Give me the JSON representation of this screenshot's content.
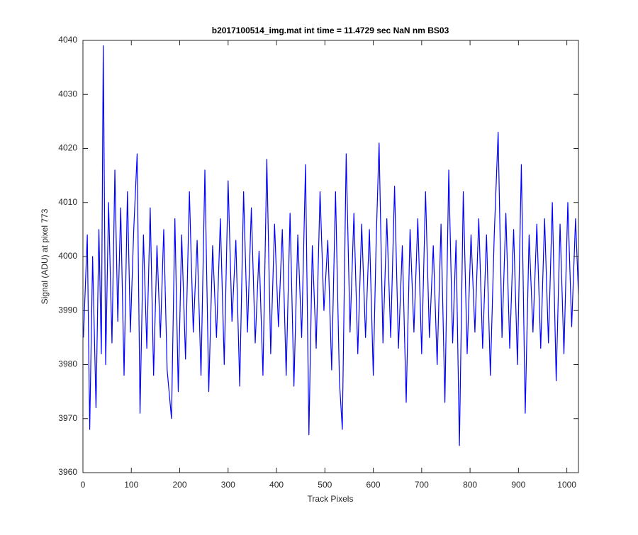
{
  "chart_data": {
    "type": "line",
    "title": "b2017100514_img.mat int time = 11.4729 sec  NaN nm BS03",
    "xlabel": "Track Pixels",
    "ylabel": "Signal (ADU) at pixel 773",
    "xlim": [
      0,
      1024
    ],
    "ylim": [
      3960,
      4040
    ],
    "xticks": [
      0,
      100,
      200,
      300,
      400,
      500,
      600,
      700,
      800,
      900,
      1000
    ],
    "yticks": [
      3960,
      3970,
      3980,
      3990,
      4000,
      4010,
      4020,
      4030,
      4040
    ],
    "grid": false,
    "x": [
      1,
      9,
      14,
      20,
      27,
      33,
      38,
      42,
      47,
      53,
      60,
      66,
      72,
      78,
      85,
      92,
      98,
      105,
      112,
      118,
      125,
      132,
      139,
      146,
      153,
      160,
      167,
      174,
      183,
      190,
      197,
      204,
      212,
      220,
      228,
      236,
      244,
      252,
      260,
      268,
      276,
      284,
      292,
      300,
      308,
      316,
      324,
      332,
      340,
      348,
      356,
      364,
      372,
      380,
      388,
      396,
      404,
      412,
      420,
      428,
      436,
      444,
      452,
      460,
      467,
      474,
      482,
      490,
      498,
      506,
      514,
      522,
      530,
      536,
      544,
      552,
      560,
      568,
      576,
      584,
      592,
      600,
      606,
      612,
      620,
      628,
      636,
      644,
      652,
      660,
      668,
      676,
      684,
      692,
      700,
      708,
      716,
      724,
      732,
      740,
      748,
      756,
      764,
      771,
      778,
      786,
      794,
      802,
      810,
      818,
      826,
      834,
      842,
      850,
      858,
      866,
      874,
      882,
      890,
      898,
      906,
      914,
      922,
      930,
      938,
      946,
      954,
      962,
      970,
      978,
      986,
      994,
      1002,
      1010,
      1018,
      1024
    ],
    "series": [
      {
        "color": "#0000ff",
        "values": [
          3985,
          4004,
          3968,
          4000,
          3972,
          4005,
          3982,
          4039,
          3980,
          4010,
          3984,
          4016,
          3988,
          4009,
          3978,
          4012,
          3986,
          4005,
          4019,
          3971,
          4004,
          3983,
          4009,
          3978,
          4002,
          3985,
          4005,
          3979,
          3970,
          4007,
          3975,
          4004,
          3981,
          4012,
          3986,
          4003,
          3978,
          4016,
          3975,
          4002,
          3985,
          4007,
          3980,
          4014,
          3988,
          4003,
          3976,
          4012,
          3986,
          4009,
          3984,
          4001,
          3978,
          4018,
          3982,
          4006,
          3987,
          4005,
          3978,
          4008,
          3976,
          4004,
          3985,
          4017,
          3967,
          4002,
          3983,
          4012,
          3990,
          4003,
          3979,
          4012,
          3977,
          3968,
          4019,
          3986,
          4008,
          3982,
          4006,
          3985,
          4005,
          3978,
          4003,
          4021,
          3984,
          4007,
          3985,
          4013,
          3983,
          4002,
          3973,
          4005,
          3986,
          4007,
          3982,
          4012,
          3985,
          4002,
          3980,
          4006,
          3973,
          4016,
          3984,
          4003,
          3965,
          4012,
          3982,
          4004,
          3986,
          4007,
          3983,
          4004,
          3978,
          4004,
          4023,
          3985,
          4008,
          3983,
          4005,
          3980,
          4017,
          3971,
          4004,
          3986,
          4006,
          3983,
          4007,
          3984,
          4010,
          3977,
          4006,
          3982,
          4010,
          3987,
          4007,
          3993
        ]
      }
    ]
  }
}
